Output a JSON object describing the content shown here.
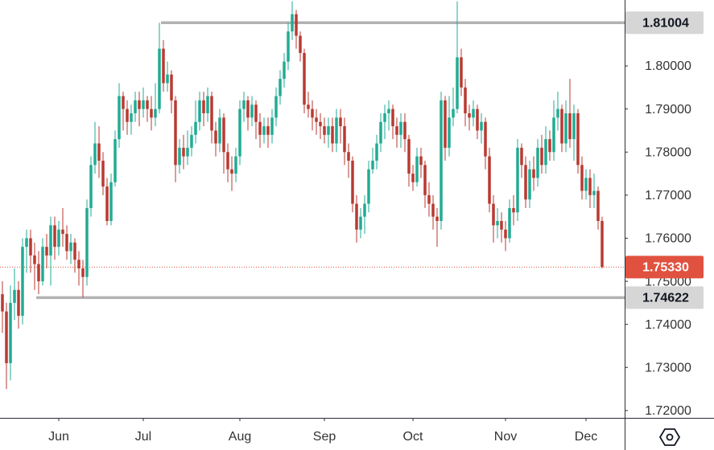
{
  "chart_data": {
    "type": "candlestick",
    "up_color": "#22ab94",
    "down_color": "#b83a32",
    "open": [
      1.747,
      1.743,
      1.731,
      1.745,
      1.748,
      1.742,
      1.758,
      1.76,
      1.756,
      1.754,
      1.75,
      1.758,
      1.756,
      1.763,
      1.758,
      1.762,
      1.761,
      1.757,
      1.759,
      1.755,
      1.753,
      1.751,
      1.767,
      1.777,
      1.782,
      1.778,
      1.772,
      1.764,
      1.773,
      1.783,
      1.793,
      1.79,
      1.787,
      1.789,
      1.792,
      1.79,
      1.792,
      1.79,
      1.788,
      1.79,
      1.804,
      1.796,
      1.798,
      1.792,
      1.777,
      1.781,
      1.779,
      1.781,
      1.784,
      1.787,
      1.792,
      1.789,
      1.793,
      1.785,
      1.782,
      1.788,
      1.78,
      1.776,
      1.775,
      1.779,
      1.79,
      1.792,
      1.788,
      1.791,
      1.787,
      1.784,
      1.786,
      1.784,
      1.788,
      1.793,
      1.797,
      1.801,
      1.808,
      1.812,
      1.807,
      1.803,
      1.791,
      1.79,
      1.788,
      1.787,
      1.786,
      1.784,
      1.786,
      1.782,
      1.788,
      1.786,
      1.78,
      1.778,
      1.768,
      1.762,
      1.765,
      1.768,
      1.776,
      1.778,
      1.782,
      1.787,
      1.789,
      1.79,
      1.786,
      1.784,
      1.787,
      1.783,
      1.775,
      1.773,
      1.779,
      1.777,
      1.77,
      1.768,
      1.765,
      1.764,
      1.792,
      1.781,
      1.788,
      1.79,
      1.802,
      1.795,
      1.789,
      1.788,
      1.79,
      1.785,
      1.787,
      1.779,
      1.768,
      1.763,
      1.764,
      1.762,
      1.76,
      1.767,
      1.766,
      1.781,
      1.777,
      1.769,
      1.776,
      1.774,
      1.781,
      1.777,
      1.783,
      1.78,
      1.788,
      1.79,
      1.782,
      1.789,
      1.783,
      1.789,
      1.777,
      1.771,
      1.774,
      1.77,
      1.771,
      1.764
    ],
    "high": [
      1.75,
      1.745,
      1.749,
      1.753,
      1.75,
      1.76,
      1.762,
      1.762,
      1.759,
      1.757,
      1.76,
      1.761,
      1.765,
      1.765,
      1.764,
      1.767,
      1.763,
      1.761,
      1.76,
      1.757,
      1.755,
      1.769,
      1.779,
      1.787,
      1.786,
      1.78,
      1.774,
      1.775,
      1.785,
      1.796,
      1.794,
      1.792,
      1.791,
      1.794,
      1.794,
      1.795,
      1.793,
      1.793,
      1.796,
      1.81,
      1.806,
      1.801,
      1.799,
      1.793,
      1.783,
      1.784,
      1.785,
      1.786,
      1.792,
      1.794,
      1.794,
      1.795,
      1.794,
      1.787,
      1.79,
      1.789,
      1.782,
      1.779,
      1.781,
      1.792,
      1.794,
      1.793,
      1.793,
      1.792,
      1.789,
      1.788,
      1.788,
      1.79,
      1.795,
      1.799,
      1.803,
      1.81,
      1.815,
      1.813,
      1.808,
      1.804,
      1.794,
      1.792,
      1.79,
      1.789,
      1.788,
      1.788,
      1.788,
      1.79,
      1.79,
      1.788,
      1.782,
      1.779,
      1.77,
      1.767,
      1.77,
      1.778,
      1.781,
      1.784,
      1.789,
      1.791,
      1.792,
      1.791,
      1.788,
      1.789,
      1.789,
      1.784,
      1.777,
      1.781,
      1.781,
      1.778,
      1.773,
      1.77,
      1.767,
      1.794,
      1.793,
      1.793,
      1.795,
      1.815,
      1.804,
      1.797,
      1.791,
      1.792,
      1.791,
      1.789,
      1.788,
      1.781,
      1.77,
      1.767,
      1.766,
      1.764,
      1.769,
      1.77,
      1.783,
      1.782,
      1.779,
      1.778,
      1.779,
      1.783,
      1.784,
      1.786,
      1.785,
      1.792,
      1.794,
      1.791,
      1.792,
      1.797,
      1.791,
      1.79,
      1.779,
      1.776,
      1.776,
      1.775,
      1.772,
      1.765
    ],
    "low": [
      1.738,
      1.725,
      1.727,
      1.741,
      1.739,
      1.74,
      1.752,
      1.752,
      1.748,
      1.747,
      1.749,
      1.753,
      1.749,
      1.755,
      1.756,
      1.758,
      1.755,
      1.754,
      1.752,
      1.749,
      1.7462,
      1.749,
      1.765,
      1.775,
      1.774,
      1.77,
      1.763,
      1.763,
      1.772,
      1.781,
      1.785,
      1.784,
      1.784,
      1.787,
      1.786,
      1.788,
      1.787,
      1.785,
      1.786,
      1.789,
      1.794,
      1.794,
      1.789,
      1.773,
      1.775,
      1.776,
      1.777,
      1.779,
      1.782,
      1.785,
      1.786,
      1.787,
      1.782,
      1.779,
      1.78,
      1.775,
      1.773,
      1.771,
      1.773,
      1.777,
      1.787,
      1.785,
      1.786,
      1.783,
      1.781,
      1.782,
      1.781,
      1.782,
      1.786,
      1.791,
      1.795,
      1.799,
      1.806,
      1.804,
      1.801,
      1.789,
      1.788,
      1.785,
      1.784,
      1.783,
      1.782,
      1.781,
      1.78,
      1.78,
      1.782,
      1.777,
      1.774,
      1.766,
      1.759,
      1.76,
      1.761,
      1.766,
      1.775,
      1.776,
      1.78,
      1.783,
      1.785,
      1.783,
      1.781,
      1.781,
      1.78,
      1.772,
      1.771,
      1.772,
      1.774,
      1.767,
      1.765,
      1.762,
      1.758,
      1.762,
      1.778,
      1.779,
      1.786,
      1.789,
      1.793,
      1.786,
      1.785,
      1.786,
      1.783,
      1.782,
      1.776,
      1.766,
      1.759,
      1.76,
      1.759,
      1.757,
      1.759,
      1.763,
      1.764,
      1.774,
      1.767,
      1.767,
      1.771,
      1.772,
      1.775,
      1.775,
      1.778,
      1.778,
      1.785,
      1.78,
      1.78,
      1.781,
      1.778,
      1.775,
      1.769,
      1.769,
      1.767,
      1.767,
      1.762,
      1.753
    ],
    "close": [
      1.743,
      1.731,
      1.745,
      1.748,
      1.742,
      1.758,
      1.76,
      1.756,
      1.754,
      1.75,
      1.758,
      1.756,
      1.763,
      1.758,
      1.762,
      1.761,
      1.757,
      1.759,
      1.755,
      1.753,
      1.751,
      1.767,
      1.777,
      1.782,
      1.778,
      1.772,
      1.764,
      1.773,
      1.783,
      1.793,
      1.79,
      1.787,
      1.789,
      1.792,
      1.79,
      1.792,
      1.79,
      1.788,
      1.79,
      1.804,
      1.796,
      1.798,
      1.792,
      1.777,
      1.781,
      1.779,
      1.781,
      1.784,
      1.787,
      1.792,
      1.789,
      1.793,
      1.785,
      1.782,
      1.788,
      1.78,
      1.776,
      1.775,
      1.779,
      1.79,
      1.792,
      1.788,
      1.791,
      1.787,
      1.784,
      1.786,
      1.784,
      1.788,
      1.793,
      1.797,
      1.801,
      1.808,
      1.812,
      1.807,
      1.803,
      1.791,
      1.79,
      1.788,
      1.787,
      1.786,
      1.784,
      1.786,
      1.782,
      1.788,
      1.786,
      1.78,
      1.778,
      1.768,
      1.762,
      1.765,
      1.768,
      1.776,
      1.778,
      1.782,
      1.787,
      1.789,
      1.79,
      1.786,
      1.784,
      1.787,
      1.783,
      1.775,
      1.773,
      1.779,
      1.777,
      1.77,
      1.768,
      1.765,
      1.764,
      1.792,
      1.781,
      1.788,
      1.79,
      1.802,
      1.795,
      1.789,
      1.788,
      1.79,
      1.785,
      1.787,
      1.779,
      1.768,
      1.763,
      1.764,
      1.762,
      1.76,
      1.767,
      1.766,
      1.781,
      1.777,
      1.769,
      1.776,
      1.774,
      1.781,
      1.777,
      1.783,
      1.78,
      1.788,
      1.79,
      1.782,
      1.789,
      1.783,
      1.789,
      1.777,
      1.771,
      1.774,
      1.77,
      1.771,
      1.764,
      1.7533
    ],
    "xlim": [
      -0.6,
      154.6
    ],
    "xticks": [
      {
        "value": 14,
        "label": "Jun"
      },
      {
        "value": 35,
        "label": "Jul"
      },
      {
        "value": 59,
        "label": "Aug"
      },
      {
        "value": 80,
        "label": "Sep"
      },
      {
        "value": 102,
        "label": "Oct"
      },
      {
        "value": 125,
        "label": "Nov"
      },
      {
        "value": 145,
        "label": "Dec"
      }
    ],
    "ylim": [
      1.7183,
      1.8153
    ],
    "yticks": [
      {
        "value": 1.72,
        "label": "1.72000"
      },
      {
        "value": 1.73,
        "label": "1.73000"
      },
      {
        "value": 1.74,
        "label": "1.74000"
      },
      {
        "value": 1.75,
        "label": "1.75000"
      },
      {
        "value": 1.76,
        "label": "1.76000"
      },
      {
        "value": 1.77,
        "label": "1.77000"
      },
      {
        "value": 1.78,
        "label": "1.78000"
      },
      {
        "value": 1.79,
        "label": "1.79000"
      },
      {
        "value": 1.8,
        "label": "1.80000"
      }
    ],
    "levels": [
      {
        "value": 1.81004,
        "label": "1.81004",
        "color": "#b2b2b2"
      },
      {
        "value": 1.74622,
        "label": "1.74622",
        "color": "#b2b2b2"
      }
    ],
    "last_price": {
      "value": 1.7533,
      "label": "1.75330",
      "color": "#e0523f"
    }
  }
}
